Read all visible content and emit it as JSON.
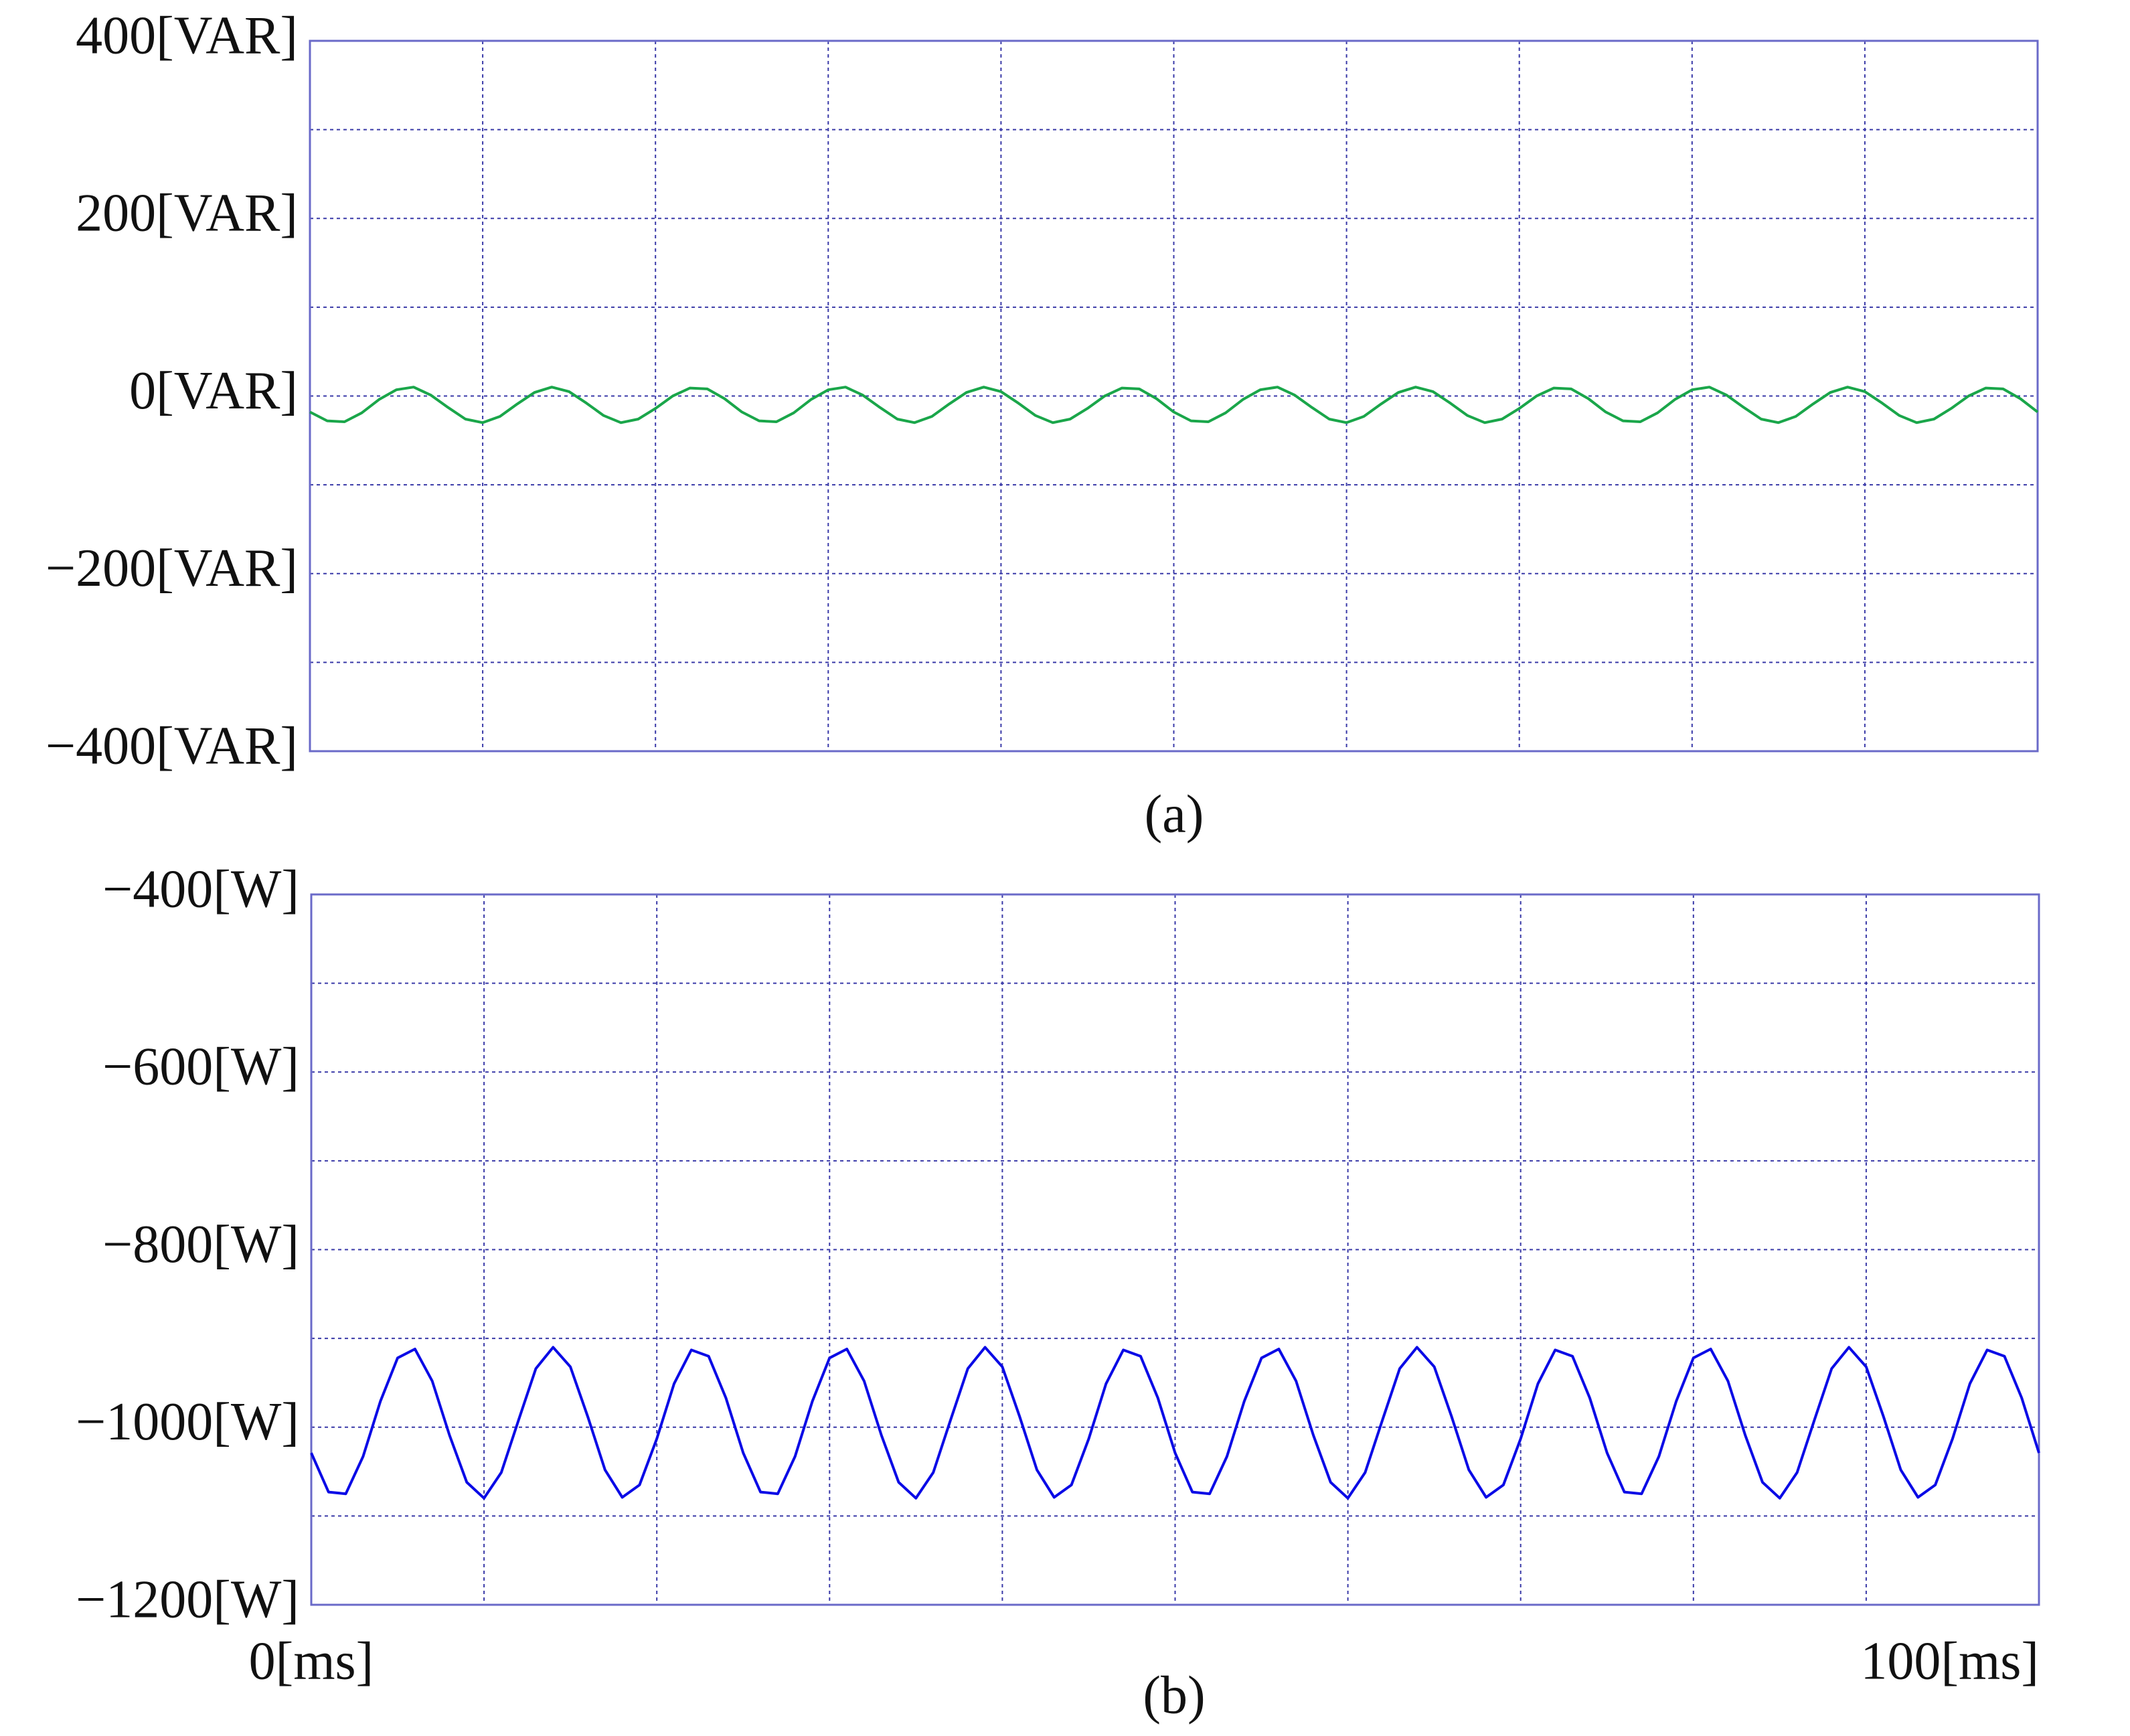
{
  "chart_data": [
    {
      "type": "line",
      "caption": "(a)",
      "x": [
        0,
        1,
        2,
        3,
        4,
        5,
        6,
        7,
        8,
        9,
        10,
        11,
        12,
        13,
        14,
        15,
        16,
        17,
        18,
        19,
        20,
        21,
        22,
        23,
        24,
        25,
        26,
        27,
        28,
        29,
        30,
        31,
        32,
        33,
        34,
        35,
        36,
        37,
        38,
        39,
        40,
        41,
        42,
        43,
        44,
        45,
        46,
        47,
        48,
        49,
        50,
        51,
        52,
        53,
        54,
        55,
        56,
        57,
        58,
        59,
        60,
        61,
        62,
        63,
        64,
        65,
        66,
        67,
        68,
        69,
        70,
        71,
        72,
        73,
        74,
        75,
        76,
        77,
        78,
        79,
        80,
        81,
        82,
        83,
        84,
        85,
        86,
        87,
        88,
        89,
        90,
        91,
        92,
        93,
        94,
        95,
        96,
        97,
        98,
        99,
        100
      ],
      "series": [
        {
          "color": "#1aa64a",
          "values": [
            -18,
            -28,
            -29,
            -19,
            -4,
            7,
            10,
            1,
            -13,
            -26,
            -30,
            -23,
            -9,
            4,
            10,
            5,
            -8,
            -22,
            -30,
            -26,
            -14,
            0,
            9,
            8,
            -3,
            -18,
            -28,
            -29,
            -19,
            -4,
            7,
            10,
            1,
            -13,
            -26,
            -30,
            -23,
            -9,
            4,
            10,
            5,
            -8,
            -22,
            -30,
            -26,
            -14,
            0,
            9,
            8,
            -3,
            -18,
            -28,
            -29,
            -19,
            -4,
            7,
            10,
            1,
            -13,
            -26,
            -30,
            -23,
            -9,
            4,
            10,
            5,
            -8,
            -22,
            -30,
            -26,
            -14,
            0,
            9,
            8,
            -3,
            -18,
            -28,
            -29,
            -19,
            -4,
            7,
            10,
            1,
            -13,
            -26,
            -30,
            -23,
            -9,
            4,
            10,
            5,
            -8,
            -22,
            -30,
            -26,
            -14,
            0,
            9,
            8,
            -3,
            -18
          ]
        }
      ],
      "xlim": [
        0,
        100
      ],
      "xticks": [
        {
          "value": 0,
          "label": null
        },
        {
          "value": 10,
          "label": null
        },
        {
          "value": 20,
          "label": null
        },
        {
          "value": 30,
          "label": null
        },
        {
          "value": 40,
          "label": null
        },
        {
          "value": 50,
          "label": null
        },
        {
          "value": 60,
          "label": null
        },
        {
          "value": 70,
          "label": null
        },
        {
          "value": 80,
          "label": null
        },
        {
          "value": 90,
          "label": null
        },
        {
          "value": 100,
          "label": null
        }
      ],
      "ylim": [
        -400,
        400
      ],
      "yticks": [
        {
          "value": 400,
          "label": "400[VAR]"
        },
        {
          "value": 300,
          "label": null
        },
        {
          "value": 200,
          "label": "200[VAR]"
        },
        {
          "value": 100,
          "label": null
        },
        {
          "value": 0,
          "label": "0[VAR]"
        },
        {
          "value": -100,
          "label": null
        },
        {
          "value": -200,
          "label": "−200[VAR]"
        },
        {
          "value": -300,
          "label": null
        },
        {
          "value": -400,
          "label": "−400[VAR]"
        }
      ],
      "grid": true
    },
    {
      "type": "line",
      "caption": "(b)",
      "x": [
        0,
        1,
        2,
        3,
        4,
        5,
        6,
        7,
        8,
        9,
        10,
        11,
        12,
        13,
        14,
        15,
        16,
        17,
        18,
        19,
        20,
        21,
        22,
        23,
        24,
        25,
        26,
        27,
        28,
        29,
        30,
        31,
        32,
        33,
        34,
        35,
        36,
        37,
        38,
        39,
        40,
        41,
        42,
        43,
        44,
        45,
        46,
        47,
        48,
        49,
        50,
        51,
        52,
        53,
        54,
        55,
        56,
        57,
        58,
        59,
        60,
        61,
        62,
        63,
        64,
        65,
        66,
        67,
        68,
        69,
        70,
        71,
        72,
        73,
        74,
        75,
        76,
        77,
        78,
        79,
        80,
        81,
        82,
        83,
        84,
        85,
        86,
        87,
        88,
        89,
        90,
        91,
        92,
        93,
        94,
        95,
        96,
        97,
        98,
        99,
        100
      ],
      "series": [
        {
          "color": "#0a0ae6",
          "values": [
            -1029,
            -1073,
            -1075,
            -1033,
            -971,
            -922,
            -912,
            -948,
            -1009,
            -1062,
            -1080,
            -1051,
            -992,
            -934,
            -910,
            -932,
            -988,
            -1048,
            -1079,
            -1065,
            -1013,
            -951,
            -913,
            -920,
            -967,
            -1029,
            -1073,
            -1075,
            -1033,
            -971,
            -922,
            -912,
            -948,
            -1009,
            -1062,
            -1080,
            -1051,
            -992,
            -934,
            -910,
            -932,
            -988,
            -1048,
            -1079,
            -1065,
            -1013,
            -951,
            -913,
            -920,
            -967,
            -1029,
            -1073,
            -1075,
            -1033,
            -971,
            -922,
            -912,
            -948,
            -1009,
            -1062,
            -1080,
            -1051,
            -992,
            -934,
            -910,
            -932,
            -988,
            -1048,
            -1079,
            -1065,
            -1013,
            -951,
            -913,
            -920,
            -967,
            -1029,
            -1073,
            -1075,
            -1033,
            -971,
            -922,
            -912,
            -948,
            -1009,
            -1062,
            -1080,
            -1051,
            -992,
            -934,
            -910,
            -932,
            -988,
            -1048,
            -1079,
            -1065,
            -1013,
            -951,
            -913,
            -920,
            -967,
            -1029
          ]
        }
      ],
      "xlim": [
        0,
        100
      ],
      "xticks": [
        {
          "value": 0,
          "label": "0[ms]"
        },
        {
          "value": 10,
          "label": null
        },
        {
          "value": 20,
          "label": null
        },
        {
          "value": 30,
          "label": null
        },
        {
          "value": 40,
          "label": null
        },
        {
          "value": 50,
          "label": null
        },
        {
          "value": 60,
          "label": null
        },
        {
          "value": 70,
          "label": null
        },
        {
          "value": 80,
          "label": null
        },
        {
          "value": 90,
          "label": null
        },
        {
          "value": 100,
          "label": "100[ms]"
        }
      ],
      "ylim": [
        -1200,
        -400
      ],
      "yticks": [
        {
          "value": -400,
          "label": "−400[W]"
        },
        {
          "value": -500,
          "label": null
        },
        {
          "value": -600,
          "label": "−600[W]"
        },
        {
          "value": -700,
          "label": null
        },
        {
          "value": -800,
          "label": "−800[W]"
        },
        {
          "value": -900,
          "label": null
        },
        {
          "value": -1000,
          "label": "−1000[W]"
        },
        {
          "value": -1100,
          "label": null
        },
        {
          "value": -1200,
          "label": "−1200[W]"
        }
      ],
      "grid": true
    }
  ]
}
